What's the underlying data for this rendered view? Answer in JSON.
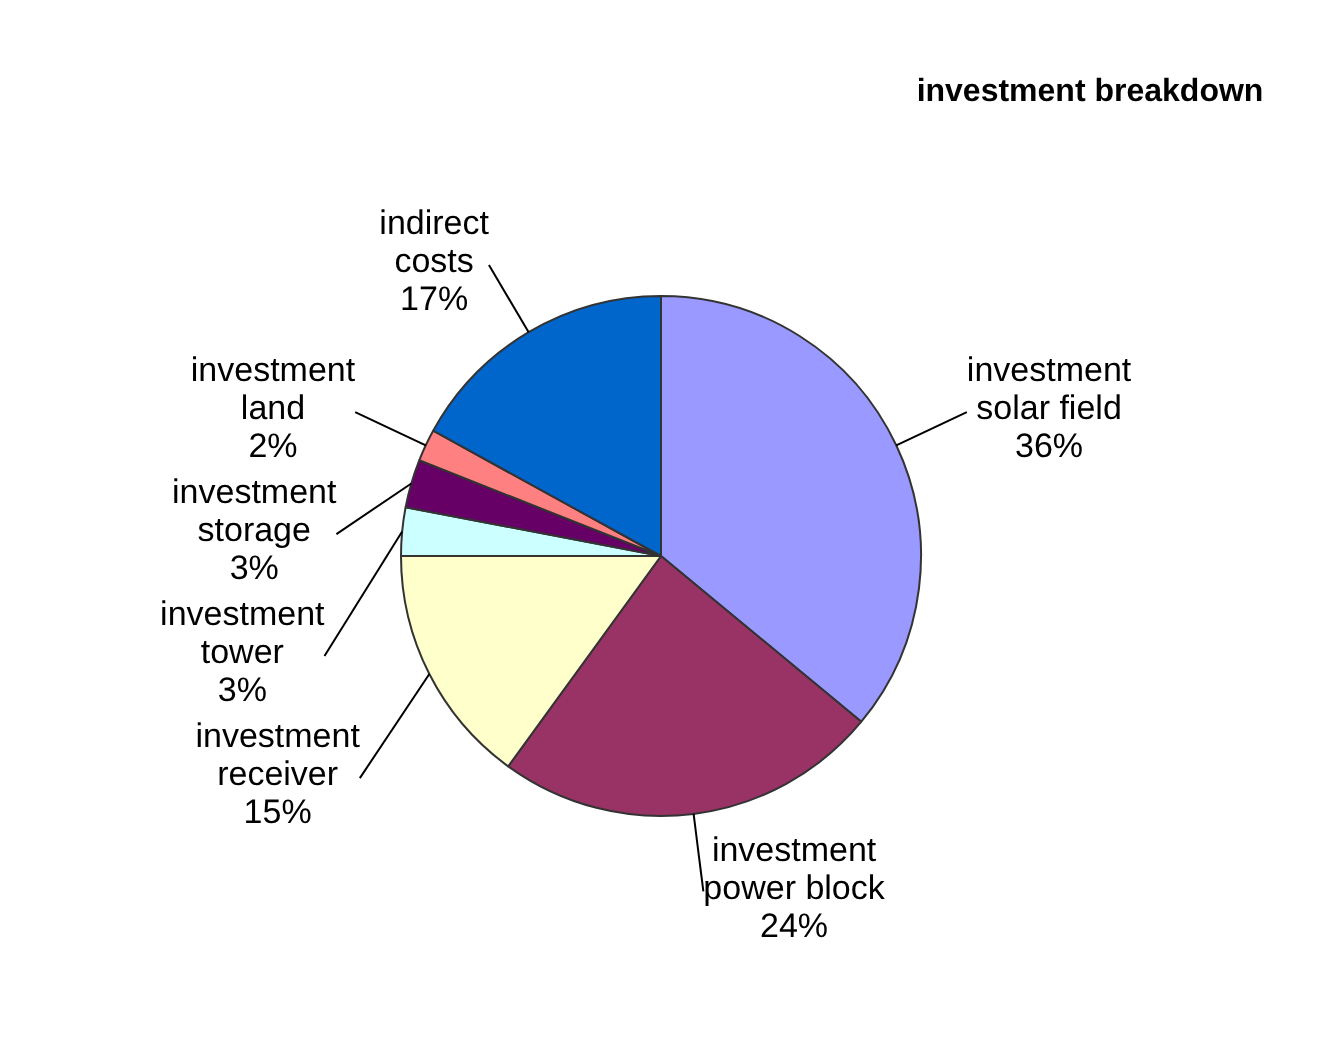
{
  "chart_data": {
    "type": "pie",
    "title": "investment breakdown",
    "categories": [
      "investment solar field",
      "investment power block",
      "investment receiver",
      "investment tower",
      "investment storage",
      "investment land",
      "indirect costs"
    ],
    "values": [
      36,
      24,
      15,
      3,
      3,
      2,
      17
    ],
    "value_labels": [
      "36%",
      "24%",
      "15%",
      "3%",
      "3%",
      "2%",
      "17%"
    ],
    "colors": [
      "#9999ff",
      "#993366",
      "#ffffcc",
      "#ccffff",
      "#660066",
      "#ff8080",
      "#0066cc"
    ],
    "legend": false
  }
}
